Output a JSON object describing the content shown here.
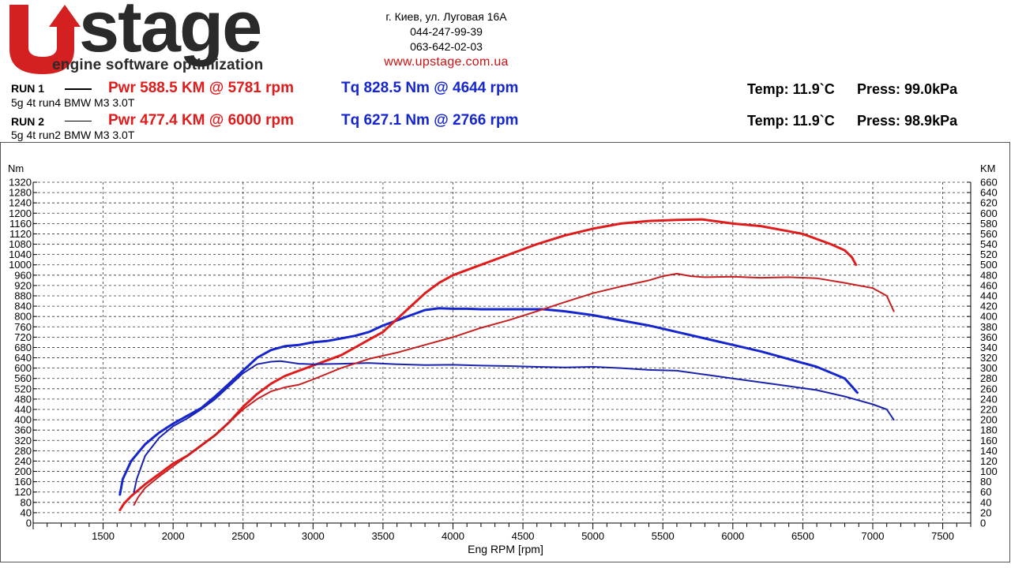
{
  "logo": {
    "brand": "Upstage",
    "word": "stage",
    "tagline": "engine software optimization"
  },
  "contacts": {
    "address": "г. Киев, ул. Луговая 16А",
    "phone1": "044-247-99-39",
    "phone2": "063-642-02-03",
    "website": "www.upstage.com.ua"
  },
  "runs": [
    {
      "label": "RUN 1",
      "description": "5g 4t run4 BMW M3 3.0T",
      "pwr": "Pwr  588.5 KM @ 5781 rpm",
      "tq": "Tq 828.5 Nm @ 4644 rpm",
      "temp": "Temp: 11.9`C",
      "press": "Press: 99.0kPa"
    },
    {
      "label": "RUN 2",
      "description": "5g 4t run2 BMW M3 3.0T",
      "pwr": "Pwr  477.4 KM @ 6000 rpm",
      "tq": "Tq 627.1 Nm @ 2766 rpm",
      "temp": "Temp: 11.9`C",
      "press": "Press: 98.9kPa"
    }
  ],
  "colors": {
    "power": "#e01b1b",
    "power_run2": "#c81e1e",
    "torque": "#1526cf",
    "torque_run2": "#1a23b0"
  },
  "chart_data": {
    "type": "line",
    "title": "",
    "xlabel": "Eng RPM [rpm]",
    "ylabel": "Nm",
    "y2label": "KM",
    "xlim": [
      1000,
      7700
    ],
    "ylim": [
      0,
      1320
    ],
    "y2lim": [
      0,
      660
    ],
    "xticks": [
      1500,
      2000,
      2500,
      3000,
      3500,
      4000,
      4500,
      5000,
      5500,
      6000,
      6500,
      7000,
      7500
    ],
    "yticks": [
      0,
      40,
      80,
      120,
      160,
      200,
      240,
      280,
      320,
      360,
      400,
      440,
      480,
      520,
      560,
      600,
      640,
      680,
      720,
      760,
      800,
      840,
      880,
      920,
      960,
      1000,
      1040,
      1080,
      1120,
      1160,
      1200,
      1240,
      1280,
      1320
    ],
    "y2ticks": [
      0,
      20,
      40,
      60,
      80,
      100,
      120,
      140,
      160,
      180,
      200,
      220,
      240,
      260,
      280,
      300,
      320,
      340,
      360,
      380,
      400,
      420,
      440,
      460,
      480,
      500,
      520,
      540,
      560,
      580,
      600,
      620,
      640,
      660
    ],
    "grid": true,
    "series": [
      {
        "name": "RUN 1 Tq",
        "axis": "left",
        "width": 3,
        "color_key": "torque",
        "x": [
          1620,
          1640,
          1700,
          1800,
          1900,
          2000,
          2100,
          2200,
          2300,
          2400,
          2500,
          2600,
          2700,
          2800,
          2900,
          3000,
          3100,
          3200,
          3300,
          3400,
          3500,
          3600,
          3700,
          3800,
          3900,
          4000,
          4100,
          4200,
          4400,
          4644,
          4800,
          5000,
          5200,
          5400,
          5600,
          5800,
          6000,
          6200,
          6400,
          6600,
          6800,
          6890
        ],
        "y": [
          110,
          170,
          240,
          305,
          350,
          385,
          415,
          445,
          490,
          540,
          590,
          640,
          670,
          685,
          690,
          700,
          705,
          715,
          725,
          740,
          765,
          785,
          805,
          825,
          832,
          830,
          830,
          828,
          828,
          828,
          820,
          805,
          785,
          765,
          740,
          715,
          690,
          665,
          635,
          605,
          560,
          505
        ]
      },
      {
        "name": "RUN 1 Pwr",
        "axis": "right",
        "width": 3,
        "color_key": "power",
        "x": [
          1620,
          1650,
          1700,
          1800,
          1900,
          2000,
          2100,
          2200,
          2300,
          2400,
          2500,
          2600,
          2700,
          2800,
          2900,
          3000,
          3100,
          3200,
          3300,
          3400,
          3500,
          3600,
          3700,
          3800,
          3900,
          4000,
          4200,
          4400,
          4600,
          4800,
          5000,
          5200,
          5400,
          5600,
          5781,
          6000,
          6200,
          6400,
          6500,
          6600,
          6700,
          6800,
          6850,
          6880
        ],
        "y": [
          25,
          38,
          52,
          75,
          95,
          115,
          130,
          150,
          170,
          195,
          225,
          250,
          270,
          285,
          295,
          305,
          315,
          325,
          340,
          355,
          370,
          395,
          420,
          445,
          465,
          480,
          500,
          520,
          540,
          557,
          570,
          580,
          585,
          587,
          588,
          580,
          575,
          565,
          560,
          550,
          540,
          528,
          515,
          500
        ]
      },
      {
        "name": "RUN 2 Tq",
        "axis": "left",
        "width": 2,
        "color_key": "torque_run2",
        "x": [
          1720,
          1740,
          1800,
          1900,
          2000,
          2100,
          2200,
          2300,
          2400,
          2500,
          2600,
          2700,
          2766,
          2800,
          2900,
          3000,
          3200,
          3400,
          3600,
          3800,
          4000,
          4200,
          4400,
          4600,
          4800,
          5000,
          5200,
          5400,
          5600,
          5800,
          6000,
          6200,
          6400,
          6600,
          6800,
          7000,
          7100,
          7150
        ],
        "y": [
          120,
          170,
          260,
          330,
          375,
          405,
          440,
          480,
          530,
          580,
          615,
          625,
          627,
          625,
          617,
          615,
          617,
          620,
          615,
          612,
          613,
          610,
          608,
          605,
          603,
          605,
          600,
          593,
          590,
          575,
          560,
          545,
          530,
          515,
          490,
          460,
          440,
          400
        ]
      },
      {
        "name": "RUN 2 Pwr",
        "axis": "right",
        "width": 2,
        "color_key": "power_run2",
        "x": [
          1720,
          1750,
          1800,
          1900,
          2000,
          2100,
          2200,
          2300,
          2400,
          2500,
          2600,
          2700,
          2800,
          2900,
          3000,
          3200,
          3400,
          3600,
          3800,
          4000,
          4200,
          4400,
          4600,
          4800,
          5000,
          5200,
          5400,
          5500,
          5600,
          5700,
          5800,
          6000,
          6200,
          6400,
          6600,
          6800,
          7000,
          7100,
          7150
        ],
        "y": [
          35,
          50,
          68,
          90,
          110,
          130,
          150,
          170,
          195,
          220,
          240,
          255,
          263,
          268,
          278,
          300,
          318,
          330,
          345,
          360,
          378,
          393,
          410,
          428,
          445,
          458,
          470,
          478,
          483,
          478,
          476,
          477,
          475,
          476,
          474,
          465,
          455,
          440,
          410
        ]
      }
    ]
  }
}
